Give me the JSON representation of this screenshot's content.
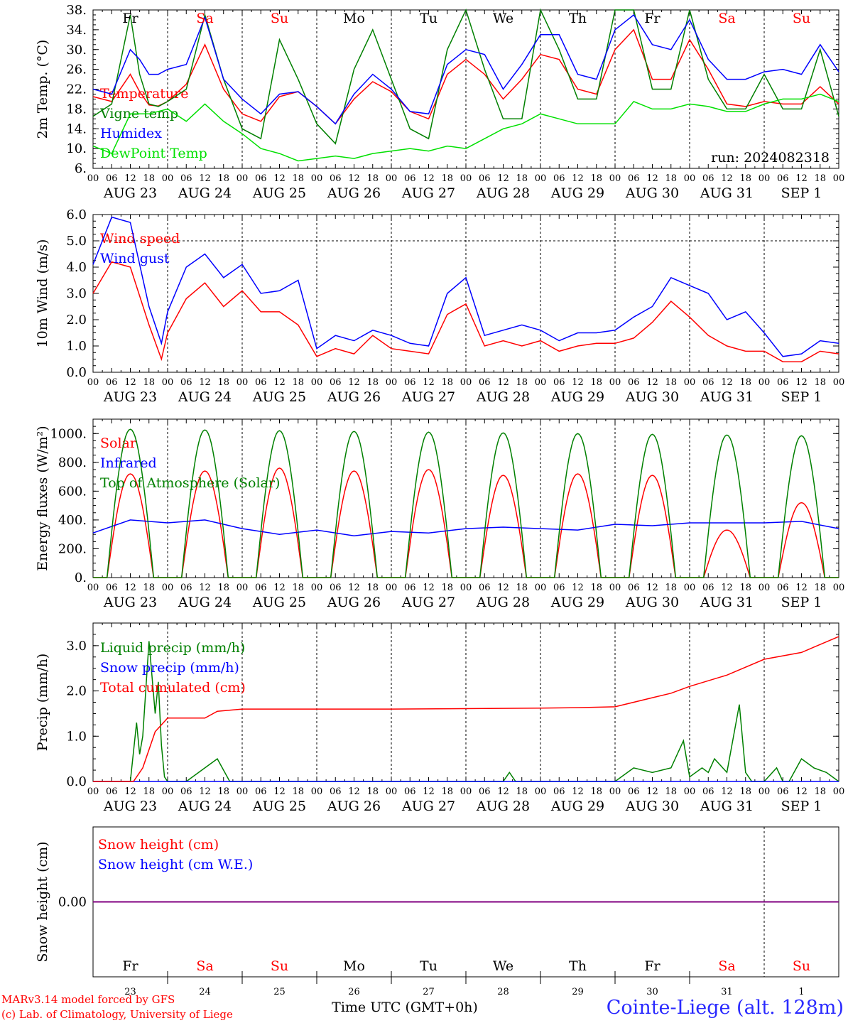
{
  "figure": {
    "footer_left_line1": "MARv3.14 model forced by GFS",
    "footer_left_line2": "(c) Lab. of Climatology, University of Liege",
    "footer_center": "Time UTC (GMT+0h)",
    "footer_right": "Cointe-Liege (alt. 128m)",
    "run_label": "run: 2024082318"
  },
  "colors": {
    "temperature": "#ff0000",
    "vigne": "#008000",
    "humidex": "#0000ff",
    "dewpoint": "#00e000",
    "weekend_day": "#ff0000",
    "weekday": "#000000",
    "snow_line": "#800080"
  },
  "time_axis": {
    "hour_ticks": [
      "00",
      "06",
      "12",
      "18"
    ],
    "date_labels": [
      "AUG 23",
      "AUG 24",
      "AUG 25",
      "AUG 26",
      "AUG 27",
      "AUG 28",
      "AUG 29",
      "AUG 30",
      "AUG 31",
      "SEP  1"
    ],
    "day_names": [
      "Fr",
      "Sa",
      "Su",
      "Mo",
      "Tu",
      "We",
      "Th",
      "Fr",
      "Sa",
      "Su"
    ],
    "day_weekend": [
      false,
      true,
      true,
      false,
      false,
      false,
      false,
      false,
      true,
      true
    ],
    "day_numbers": [
      "23",
      "24",
      "25",
      "26",
      "27",
      "28",
      "29",
      "30",
      "31",
      "1"
    ]
  },
  "chart_data": [
    {
      "type": "line",
      "ylabel": "2m Temp. (°C)",
      "ylim": [
        6,
        38
      ],
      "yticks": [
        "38.",
        "34.",
        "30.",
        "26.",
        "22.",
        "18.",
        "14.",
        "10.",
        "6."
      ],
      "x_unit": "hours since Aug 23 00 UTC",
      "series": [
        {
          "name": "Temperature",
          "color_key": "temperature",
          "x": [
            0,
            6,
            12,
            15,
            18,
            21,
            24,
            30,
            36,
            42,
            48,
            54,
            60,
            66,
            72,
            78,
            84,
            90,
            96,
            102,
            108,
            114,
            120,
            126,
            132,
            138,
            144,
            150,
            156,
            162,
            168,
            174,
            180,
            186,
            192,
            198,
            204,
            210,
            216,
            222,
            228,
            234,
            240
          ],
          "y": [
            20.5,
            19.5,
            25,
            21.5,
            18.8,
            18.6,
            19.5,
            23,
            31,
            22,
            17,
            15.5,
            20.5,
            21.5,
            18.5,
            15,
            20,
            23.5,
            21.5,
            17.5,
            16,
            25,
            28,
            25,
            20,
            24,
            29,
            28,
            22,
            21,
            30,
            34,
            24,
            24,
            32,
            26,
            19,
            18.5,
            19.5,
            19,
            19,
            22.5,
            19
          ]
        },
        {
          "name": "Vigne temp",
          "color_key": "vigne",
          "x": [
            0,
            6,
            12,
            15,
            18,
            21,
            24,
            30,
            36,
            42,
            48,
            54,
            60,
            66,
            72,
            78,
            84,
            90,
            96,
            102,
            108,
            114,
            120,
            126,
            132,
            138,
            144,
            150,
            156,
            162,
            168,
            174,
            180,
            186,
            192,
            198,
            204,
            210,
            216,
            222,
            228,
            234,
            240
          ],
          "y": [
            16.5,
            19,
            37,
            25,
            19,
            18.5,
            19.5,
            22,
            37,
            24,
            14,
            12,
            32,
            24,
            15,
            11,
            26,
            34,
            24,
            14,
            12,
            30,
            38,
            26,
            16,
            16,
            38,
            30,
            20,
            20,
            38,
            38,
            22,
            22,
            38,
            24,
            18,
            18,
            25,
            18,
            18,
            30,
            16.5
          ]
        },
        {
          "name": "Humidex",
          "color_key": "humidex",
          "x": [
            0,
            6,
            12,
            15,
            18,
            21,
            24,
            30,
            36,
            42,
            48,
            54,
            60,
            66,
            72,
            78,
            84,
            90,
            96,
            102,
            108,
            114,
            120,
            126,
            132,
            138,
            144,
            150,
            156,
            162,
            168,
            174,
            180,
            186,
            192,
            198,
            204,
            210,
            216,
            222,
            228,
            234,
            240
          ],
          "y": [
            22,
            21,
            30,
            28,
            25,
            25,
            26,
            27,
            36.5,
            24,
            20,
            17,
            21,
            21.5,
            18.5,
            15,
            21,
            25,
            22,
            17.5,
            17,
            27,
            30,
            29,
            22,
            27,
            33,
            33,
            25,
            24,
            34,
            37,
            31,
            30,
            36,
            28,
            24,
            24,
            25.5,
            26,
            25,
            31,
            25.5
          ]
        },
        {
          "name": "DewPoint Temp",
          "color_key": "dewpoint",
          "x": [
            0,
            6,
            12,
            18,
            24,
            30,
            36,
            42,
            48,
            54,
            60,
            66,
            72,
            78,
            84,
            90,
            96,
            102,
            108,
            114,
            120,
            126,
            132,
            138,
            144,
            150,
            156,
            162,
            168,
            174,
            180,
            186,
            192,
            198,
            204,
            210,
            216,
            222,
            228,
            234,
            240
          ],
          "y": [
            10.5,
            9,
            17,
            17,
            18,
            15.5,
            19,
            15.5,
            13,
            10,
            9,
            7.5,
            8,
            8.5,
            8,
            9,
            9.5,
            10,
            9.5,
            10.5,
            10,
            12,
            14,
            15,
            17,
            16,
            15,
            15,
            15,
            19.5,
            18,
            18,
            19,
            18.5,
            17.5,
            17.5,
            19,
            20,
            20,
            21,
            19.5
          ]
        }
      ]
    },
    {
      "type": "line",
      "ylabel": "10m Wind (m/s)",
      "ylim": [
        0,
        6
      ],
      "yticks": [
        "6.0",
        "5.0",
        "4.0",
        "3.0",
        "2.0",
        "1.0",
        "0.0"
      ],
      "x_unit": "hours since Aug 23 00 UTC",
      "series": [
        {
          "name": "Wind speed",
          "color_key": "temperature",
          "x": [
            0,
            6,
            12,
            18,
            22,
            24,
            30,
            36,
            42,
            48,
            54,
            60,
            66,
            72,
            78,
            84,
            90,
            96,
            102,
            108,
            114,
            120,
            126,
            132,
            138,
            144,
            150,
            156,
            162,
            168,
            174,
            180,
            186,
            192,
            198,
            204,
            210,
            216,
            222,
            228,
            234,
            240
          ],
          "y": [
            3.0,
            4.2,
            4.0,
            1.8,
            0.5,
            1.5,
            2.8,
            3.4,
            2.5,
            3.1,
            2.3,
            2.3,
            1.8,
            0.6,
            0.9,
            0.7,
            1.4,
            0.9,
            0.8,
            0.7,
            2.2,
            2.6,
            1.0,
            1.2,
            1.0,
            1.2,
            0.8,
            1.0,
            1.1,
            1.1,
            1.3,
            1.9,
            2.7,
            2.1,
            1.4,
            1.0,
            0.8,
            0.8,
            0.4,
            0.4,
            0.8,
            0.7
          ]
        },
        {
          "name": "Wind gust",
          "color_key": "humidex",
          "x": [
            0,
            6,
            12,
            18,
            22,
            24,
            30,
            36,
            42,
            48,
            54,
            60,
            66,
            72,
            78,
            84,
            90,
            96,
            102,
            108,
            114,
            120,
            126,
            132,
            138,
            144,
            150,
            156,
            162,
            168,
            174,
            180,
            186,
            192,
            198,
            204,
            210,
            216,
            222,
            228,
            234,
            240
          ],
          "y": [
            4.1,
            5.9,
            5.7,
            2.5,
            1.1,
            2.3,
            4.0,
            4.5,
            3.6,
            4.1,
            3.0,
            3.1,
            3.5,
            0.9,
            1.4,
            1.2,
            1.6,
            1.4,
            1.1,
            1.0,
            3.0,
            3.6,
            1.4,
            1.6,
            1.8,
            1.6,
            1.2,
            1.5,
            1.5,
            1.6,
            2.1,
            2.5,
            3.6,
            3.3,
            3.0,
            2.0,
            2.3,
            1.5,
            0.6,
            0.7,
            1.2,
            1.1
          ]
        }
      ]
    },
    {
      "type": "line",
      "ylabel": "Energy fluxes (W/m²)",
      "ylim": [
        0,
        1100
      ],
      "yticks": [
        "1000.",
        "800.",
        "600.",
        "400.",
        "200.",
        "0."
      ],
      "x_unit": "hours since Aug 23 00 UTC",
      "diurnal": {
        "sunrise_hour": 4.5,
        "sunset_hour": 19.5
      },
      "series": [
        {
          "name": "Solar",
          "color_key": "temperature",
          "daily_peak": [
            720,
            740,
            760,
            740,
            750,
            710,
            720,
            710,
            330,
            520
          ]
        },
        {
          "name": "Infrared",
          "color_key": "humidex",
          "x": [
            0,
            12,
            24,
            36,
            48,
            60,
            72,
            84,
            96,
            108,
            120,
            132,
            144,
            156,
            168,
            180,
            192,
            204,
            216,
            228,
            240
          ],
          "y": [
            310,
            400,
            380,
            400,
            340,
            300,
            330,
            290,
            320,
            310,
            340,
            350,
            340,
            330,
            370,
            360,
            380,
            380,
            380,
            390,
            340
          ]
        },
        {
          "name": "Top of Atmosphere (Solar)",
          "color_key": "vigne",
          "daily_peak": [
            1030,
            1025,
            1020,
            1015,
            1010,
            1005,
            1000,
            995,
            990,
            985
          ]
        }
      ]
    },
    {
      "type": "line",
      "ylabel": "Precip (mm/h)",
      "ylim": [
        0,
        3.5
      ],
      "yticks": [
        "3.0",
        "2.0",
        "1.0",
        "0.0"
      ],
      "x_unit": "hours since Aug 23 00 UTC",
      "series": [
        {
          "name": "Liquid precip (mm/h)",
          "color_key": "vigne",
          "x": [
            0,
            12,
            14,
            15,
            16,
            18,
            20,
            21,
            22,
            23,
            24,
            30,
            36,
            40,
            44,
            48,
            60,
            120,
            132,
            134,
            136,
            168,
            174,
            180,
            186,
            190,
            192,
            196,
            198,
            200,
            204,
            208,
            210,
            212,
            214,
            216,
            220,
            222,
            224,
            228,
            232,
            236,
            240
          ],
          "y": [
            0,
            0,
            1.3,
            0.6,
            1.0,
            3.1,
            1.5,
            2.2,
            0.8,
            0.1,
            0,
            0,
            0.3,
            0.5,
            0,
            0,
            0,
            0,
            0,
            0.2,
            0,
            0,
            0.3,
            0.2,
            0.3,
            0.9,
            0.1,
            0.3,
            0.2,
            0.5,
            0.2,
            1.7,
            0.2,
            0,
            0,
            0,
            0.3,
            0,
            0,
            0.5,
            0.3,
            0.2,
            0
          ]
        },
        {
          "name": "Snow precip (mm/h)",
          "color_key": "humidex",
          "y_const": 0
        },
        {
          "name": "Total cumulated (cm)",
          "color_key": "temperature",
          "x": [
            0,
            13,
            16,
            20,
            24,
            36,
            40,
            48,
            96,
            144,
            156,
            168,
            180,
            186,
            192,
            204,
            216,
            228,
            240
          ],
          "y": [
            0,
            0,
            0.3,
            1.1,
            1.4,
            1.4,
            1.55,
            1.6,
            1.6,
            1.62,
            1.63,
            1.65,
            1.85,
            1.95,
            2.1,
            2.35,
            2.7,
            2.85,
            3.2
          ]
        }
      ]
    },
    {
      "type": "line",
      "ylabel": "Snow height (cm)",
      "yticks": [
        "0.00"
      ],
      "x_unit": "hours since Aug 23 00 UTC",
      "series": [
        {
          "name": "Snow height (cm)",
          "color_key": "temperature",
          "y_const": 0
        },
        {
          "name": "Snow height (cm W.E.)",
          "color_key": "humidex",
          "y_const": 0
        }
      ]
    }
  ]
}
